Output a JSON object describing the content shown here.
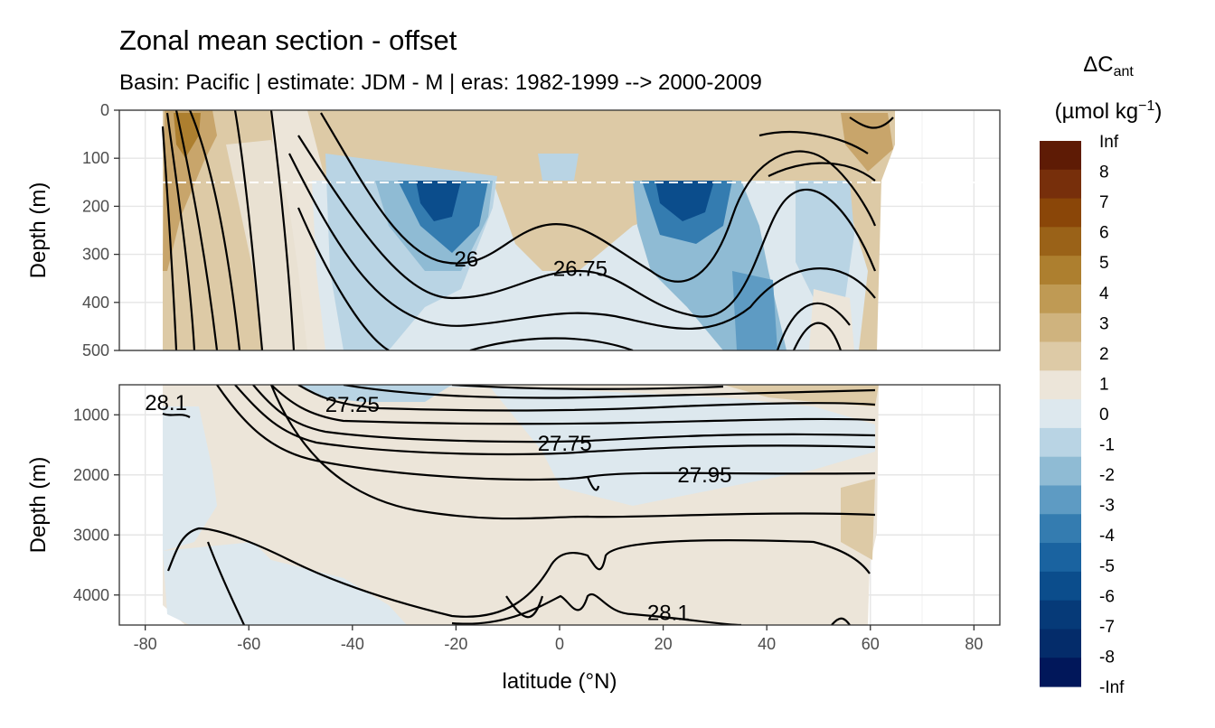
{
  "chart_data": {
    "type": "heatmap",
    "title": "Zonal mean section - offset",
    "subtitle": "Basin: Pacific | estimate: JDM - M | eras: 1982-1999 --> 2000-2009",
    "xlabel": "latitude (°N)",
    "ylabel": "Depth (m)",
    "xlim": [
      -85,
      85
    ],
    "x_ticks": [
      -80,
      -60,
      -40,
      -20,
      0,
      20,
      40,
      60,
      80
    ],
    "panels": [
      {
        "name": "upper",
        "ylim": [
          0,
          500
        ],
        "y_ticks": [
          0,
          100,
          200,
          300,
          400,
          500
        ],
        "dashed_reference_depth": 150,
        "contour_labels": [
          {
            "text": "26",
            "lat": -18,
            "depth": 310
          },
          {
            "text": "26.75",
            "lat": 4,
            "depth": 330
          }
        ]
      },
      {
        "name": "lower",
        "ylim": [
          500,
          4500
        ],
        "y_ticks": [
          1000,
          2000,
          3000,
          4000
        ],
        "contour_labels": [
          {
            "text": "28.1",
            "lat": -76,
            "depth": 800
          },
          {
            "text": "27.25",
            "lat": -40,
            "depth": 830
          },
          {
            "text": "27.75",
            "lat": 1,
            "depth": 1480
          },
          {
            "text": "27.95",
            "lat": 28,
            "depth": 2000
          },
          {
            "text": "28.1",
            "lat": 21,
            "depth": 4300
          }
        ]
      }
    ],
    "legend": {
      "title": "ΔC",
      "title_subscript": "ant",
      "unit_prefix": "(µmol kg",
      "unit_superscript": "−1",
      "unit_suffix": ")",
      "labels": [
        "Inf",
        "8",
        "7",
        "6",
        "5",
        "4",
        "3",
        "2",
        "1",
        "0",
        "-1",
        "-2",
        "-3",
        "-4",
        "-5",
        "-6",
        "-7",
        "-8",
        "-Inf"
      ],
      "colors": [
        "#5e1b05",
        "#772f0b",
        "#8a4608",
        "#9a6218",
        "#ad7f2f",
        "#bf9a54",
        "#cfb37e",
        "#ddcaa6",
        "#ece5d9",
        "#dde8ee",
        "#b9d4e4",
        "#8fbbd4",
        "#5e9bc3",
        "#347cb0",
        "#1a63a0",
        "#0b4d8c",
        "#063a78",
        "#042c6a",
        "#01175a"
      ]
    }
  }
}
